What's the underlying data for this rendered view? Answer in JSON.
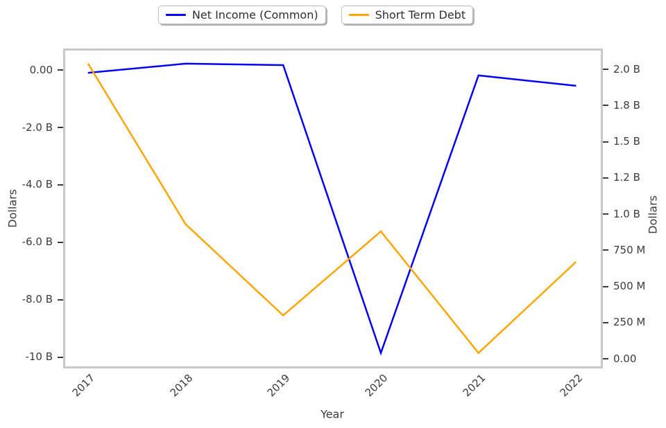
{
  "legend": {
    "items": [
      {
        "label": "Net Income (Common)",
        "color": "#0000f5"
      },
      {
        "label": "Short Term Debt",
        "color": "#ffa500"
      }
    ]
  },
  "chart_data": {
    "type": "line",
    "x": [
      2017,
      2018,
      2019,
      2020,
      2021,
      2022
    ],
    "x_tick_labels": [
      "2017",
      "2018",
      "2019",
      "2020",
      "2021",
      "2022"
    ],
    "xlabel": "Year",
    "xlim": [
      2016.76,
      2022.26
    ],
    "grid": false,
    "legend_position": "top-center",
    "series": [
      {
        "name": "Net Income (Common)",
        "axis": "left",
        "color": "#0000f5",
        "unit": "billions of dollars",
        "values": [
          -0.1,
          0.22,
          0.17,
          -9.85,
          -0.19,
          -0.55
        ]
      },
      {
        "name": "Short Term Debt",
        "axis": "right",
        "color": "#ffa500",
        "unit": "millions of dollars",
        "values": [
          2040,
          930,
          300,
          880,
          40,
          670
        ]
      }
    ],
    "left_axis": {
      "label": "Dollars",
      "ylim": [
        -10.34,
        0.7
      ],
      "unit": "B",
      "ticks": [
        {
          "value": 0,
          "label": "0.00"
        },
        {
          "value": -2,
          "label": "-2.0 B"
        },
        {
          "value": -4,
          "label": "-4.0 B"
        },
        {
          "value": -6,
          "label": "-6.0 B"
        },
        {
          "value": -8,
          "label": "-8.0 B"
        },
        {
          "value": -10,
          "label": "-10 B"
        }
      ]
    },
    "right_axis": {
      "label": "Dollars",
      "ylim": [
        -57,
        2134
      ],
      "unit": "M",
      "ticks": [
        {
          "value": 2000,
          "label": "2.0 B"
        },
        {
          "value": 1750,
          "label": "1.8 B"
        },
        {
          "value": 1500,
          "label": "1.5 B"
        },
        {
          "value": 1250,
          "label": "1.2 B"
        },
        {
          "value": 1000,
          "label": "1.0 B"
        },
        {
          "value": 750,
          "label": "750 M"
        },
        {
          "value": 500,
          "label": "500 M"
        },
        {
          "value": 250,
          "label": "250 M"
        },
        {
          "value": 0,
          "label": "0.00"
        }
      ]
    }
  }
}
